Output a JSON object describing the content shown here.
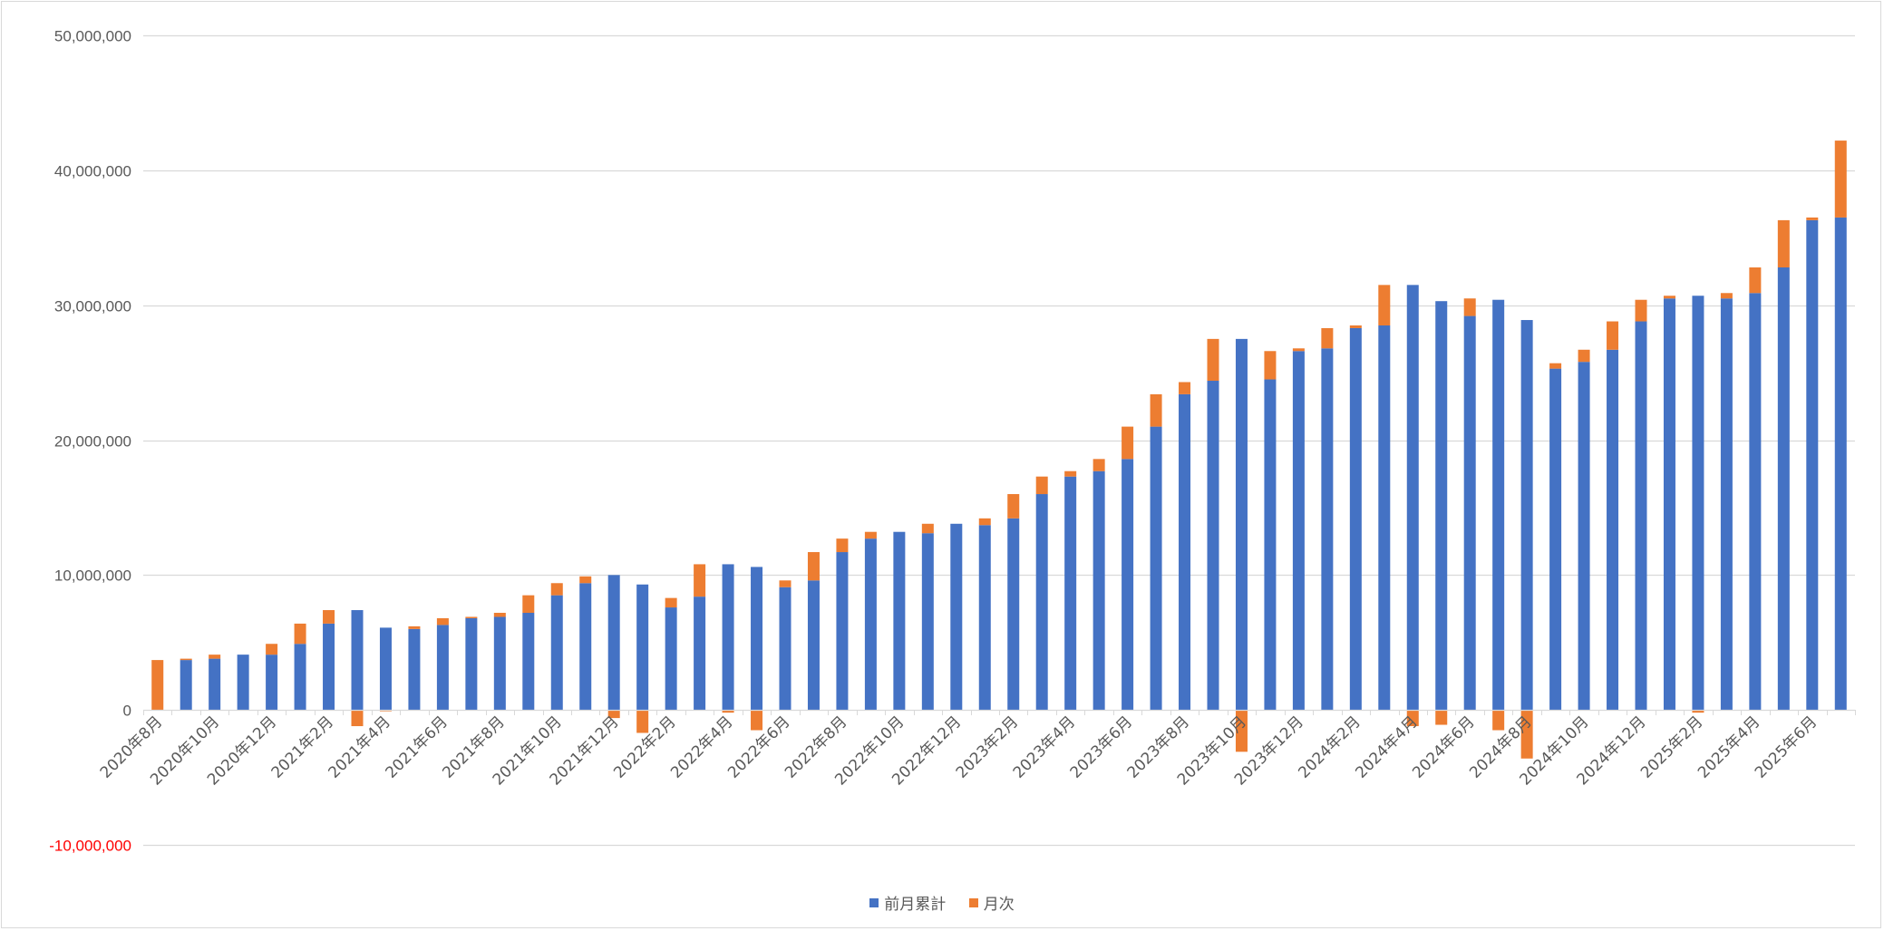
{
  "chart_data": {
    "type": "bar",
    "stacked": true,
    "grid": true,
    "legend_position": "bottom",
    "ylim": [
      -10000000,
      50000000
    ],
    "y_ticks": [
      {
        "value": 50000000,
        "label": "50,000,000"
      },
      {
        "value": 40000000,
        "label": "40,000,000"
      },
      {
        "value": 30000000,
        "label": "30,000,000"
      },
      {
        "value": 20000000,
        "label": "20,000,000"
      },
      {
        "value": 10000000,
        "label": "10,000,000"
      },
      {
        "value": 0,
        "label": "0"
      },
      {
        "value": -10000000,
        "label": "-10,000,000"
      }
    ],
    "categories": [
      "2020年8月",
      "2020年9月",
      "2020年10月",
      "2020年11月",
      "2020年12月",
      "2021年1月",
      "2021年2月",
      "2021年3月",
      "2021年4月",
      "2021年5月",
      "2021年6月",
      "2021年7月",
      "2021年8月",
      "2021年9月",
      "2021年10月",
      "2021年11月",
      "2021年12月",
      "2022年1月",
      "2022年2月",
      "2022年3月",
      "2022年4月",
      "2022年5月",
      "2022年6月",
      "2022年7月",
      "2022年8月",
      "2022年9月",
      "2022年10月",
      "2022年11月",
      "2022年12月",
      "2023年1月",
      "2023年2月",
      "2023年3月",
      "2023年4月",
      "2023年5月",
      "2023年6月",
      "2023年7月",
      "2023年8月",
      "2023年9月",
      "2023年10月",
      "2023年11月",
      "2023年12月",
      "2024年1月",
      "2024年2月",
      "2024年3月",
      "2024年4月",
      "2024年5月",
      "2024年6月",
      "2024年7月",
      "2024年8月",
      "2024年9月",
      "2024年10月",
      "2024年11月",
      "2024年12月",
      "2025年1月",
      "2025年2月",
      "2025年3月",
      "2025年4月",
      "2025年5月",
      "2025年6月",
      "2025年7月"
    ],
    "x_tick_labels": [
      "2020年8月",
      "2020年10月",
      "2020年12月",
      "2021年2月",
      "2021年4月",
      "2021年6月",
      "2021年8月",
      "2021年10月",
      "2021年12月",
      "2022年2月",
      "2022年4月",
      "2022年6月",
      "2022年8月",
      "2022年10月",
      "2022年12月",
      "2023年2月",
      "2023年4月",
      "2023年6月",
      "2023年8月",
      "2023年10月",
      "2023年12月",
      "2024年2月",
      "2024年4月",
      "2024年6月",
      "2024年8月",
      "2024年10月",
      "2024年12月",
      "2025年2月",
      "2025年4月",
      "2025年6月"
    ],
    "series": [
      {
        "name": "前月累計",
        "color": "#4472c4",
        "values": [
          0,
          3700000,
          3800000,
          4100000,
          4100000,
          4900000,
          6400000,
          7400000,
          6100000,
          6000000,
          6300000,
          6800000,
          6900000,
          7200000,
          8500000,
          9400000,
          10000000,
          9300000,
          7600000,
          8400000,
          10800000,
          10600000,
          9100000,
          9600000,
          11700000,
          12700000,
          13200000,
          13100000,
          13800000,
          13700000,
          14200000,
          16000000,
          17300000,
          17700000,
          18600000,
          21000000,
          23400000,
          24400000,
          27500000,
          24500000,
          26600000,
          26800000,
          28300000,
          28500000,
          31500000,
          30300000,
          29200000,
          30400000,
          28900000,
          25300000,
          25800000,
          26700000,
          28800000,
          30500000,
          30700000,
          30500000,
          30900000,
          32800000,
          36300000,
          36500000
        ]
      },
      {
        "name": "月次",
        "color": "#ed7d31",
        "values": [
          3700000,
          100000,
          300000,
          0,
          800000,
          1500000,
          1000000,
          -1200000,
          -100000,
          200000,
          500000,
          100000,
          300000,
          1300000,
          900000,
          500000,
          -600000,
          -1700000,
          700000,
          2400000,
          -200000,
          -1500000,
          500000,
          2100000,
          1000000,
          500000,
          0,
          700000,
          0,
          500000,
          1800000,
          1300000,
          400000,
          900000,
          2400000,
          2400000,
          900000,
          3100000,
          -3100000,
          2100000,
          200000,
          1500000,
          200000,
          3000000,
          -1200000,
          -1100000,
          1300000,
          -1500000,
          -3600000,
          400000,
          900000,
          2100000,
          1600000,
          200000,
          -200000,
          400000,
          1900000,
          3500000,
          200000,
          5700000
        ]
      }
    ]
  }
}
